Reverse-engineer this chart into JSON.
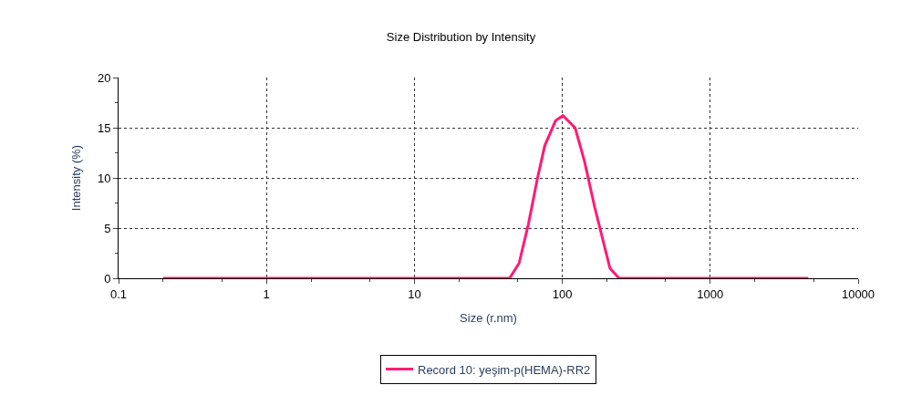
{
  "chart_data": {
    "type": "line",
    "title": "Size Distribution by Intensity",
    "xlabel": "Size (r.nm)",
    "ylabel": "Intensity (%)",
    "log": "x",
    "xlim": [
      0.1,
      10000
    ],
    "xticks": [
      0.1,
      1,
      10,
      100,
      1000,
      10000
    ],
    "ylim": [
      0,
      20
    ],
    "yticks": [
      0,
      5,
      10,
      15,
      20
    ],
    "grid": true,
    "legend": "bottom",
    "line_style": "solid",
    "marker": "none",
    "series": [
      {
        "name": "Record 10: yeşim-p(HEMA)-RR2",
        "color": "#ff1a75",
        "x": [
          0.2,
          44,
          51,
          59,
          68,
          76,
          90,
          101,
          122,
          141,
          166,
          210,
          242,
          4600
        ],
        "values": [
          0,
          0,
          1.5,
          5.4,
          10,
          13.2,
          15.7,
          16.2,
          15,
          11.7,
          7,
          1,
          0,
          0
        ]
      }
    ]
  }
}
